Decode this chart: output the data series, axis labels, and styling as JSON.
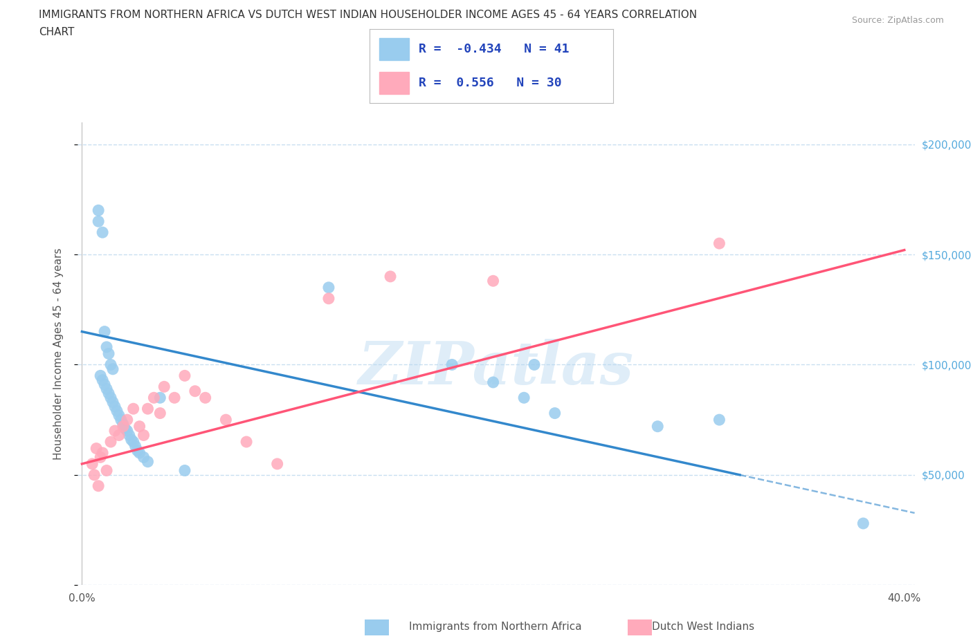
{
  "title_line1": "IMMIGRANTS FROM NORTHERN AFRICA VS DUTCH WEST INDIAN HOUSEHOLDER INCOME AGES 45 - 64 YEARS CORRELATION",
  "title_line2": "CHART",
  "source": "Source: ZipAtlas.com",
  "ylabel": "Householder Income Ages 45 - 64 years",
  "xlim": [
    -0.002,
    0.405
  ],
  "ylim": [
    0,
    210000
  ],
  "yticks": [
    0,
    50000,
    100000,
    150000,
    200000
  ],
  "xticks": [
    0.0,
    0.05,
    0.1,
    0.15,
    0.2,
    0.25,
    0.3,
    0.35,
    0.4
  ],
  "blue_R": -0.434,
  "blue_N": 41,
  "pink_R": 0.556,
  "pink_N": 30,
  "blue_color": "#99ccee",
  "blue_line_color": "#3388cc",
  "pink_color": "#ffaabb",
  "pink_line_color": "#ff5577",
  "blue_scatter_x": [
    0.008,
    0.008,
    0.01,
    0.011,
    0.012,
    0.013,
    0.014,
    0.015,
    0.009,
    0.01,
    0.011,
    0.012,
    0.013,
    0.014,
    0.015,
    0.016,
    0.017,
    0.018,
    0.019,
    0.02,
    0.021,
    0.022,
    0.023,
    0.024,
    0.025,
    0.026,
    0.027,
    0.028,
    0.03,
    0.032,
    0.038,
    0.05,
    0.12,
    0.18,
    0.2,
    0.215,
    0.22,
    0.23,
    0.28,
    0.31,
    0.38
  ],
  "blue_scatter_y": [
    170000,
    165000,
    160000,
    115000,
    108000,
    105000,
    100000,
    98000,
    95000,
    93000,
    91000,
    89000,
    87000,
    85000,
    83000,
    81000,
    79000,
    77000,
    75000,
    73000,
    71000,
    70000,
    68000,
    66000,
    65000,
    63000,
    61000,
    60000,
    58000,
    56000,
    85000,
    52000,
    135000,
    100000,
    92000,
    85000,
    100000,
    78000,
    72000,
    75000,
    28000
  ],
  "pink_scatter_x": [
    0.005,
    0.006,
    0.007,
    0.008,
    0.009,
    0.01,
    0.012,
    0.014,
    0.016,
    0.018,
    0.02,
    0.022,
    0.025,
    0.028,
    0.03,
    0.032,
    0.035,
    0.038,
    0.04,
    0.045,
    0.05,
    0.055,
    0.06,
    0.07,
    0.08,
    0.095,
    0.12,
    0.15,
    0.2,
    0.31
  ],
  "pink_scatter_y": [
    55000,
    50000,
    62000,
    45000,
    58000,
    60000,
    52000,
    65000,
    70000,
    68000,
    72000,
    75000,
    80000,
    72000,
    68000,
    80000,
    85000,
    78000,
    90000,
    85000,
    95000,
    88000,
    85000,
    75000,
    65000,
    55000,
    130000,
    140000,
    138000,
    155000
  ],
  "blue_line_x0": 0.0,
  "blue_line_y0": 115000,
  "blue_line_x1": 0.32,
  "blue_line_y1": 50000,
  "pink_line_x0": 0.0,
  "pink_line_y0": 55000,
  "pink_line_x1": 0.4,
  "pink_line_y1": 152000,
  "watermark_text": "ZIPatlas",
  "background_color": "#ffffff",
  "grid_color": "#c8dff0",
  "right_tick_color": "#55aadd",
  "legend_R_color": "#2244bb"
}
